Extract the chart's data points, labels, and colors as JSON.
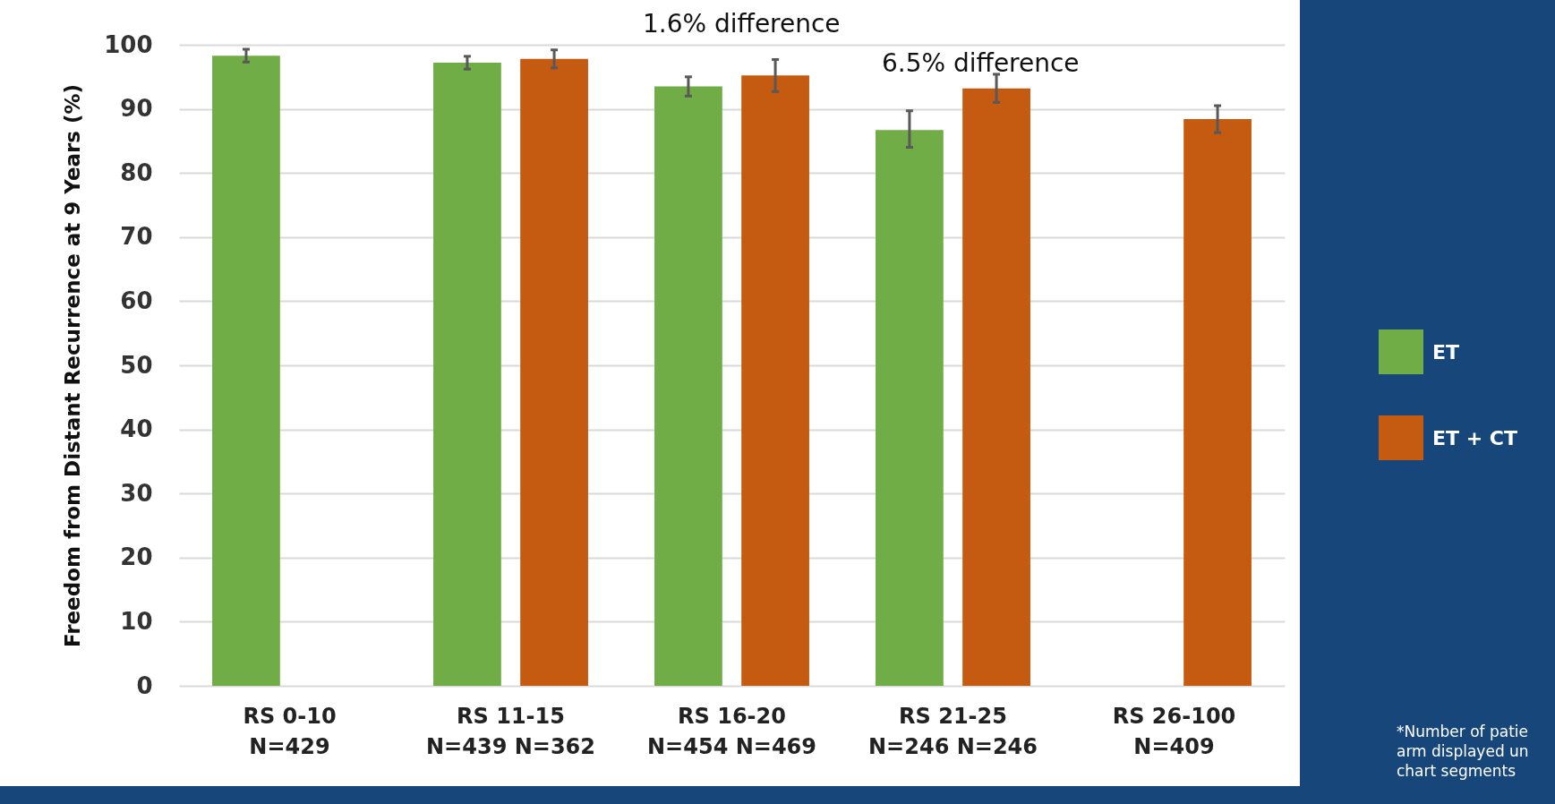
{
  "chart_data": {
    "type": "bar",
    "ylabel": "Freedom from Distant Recurrence at 9 Years (%)",
    "categories": [
      "RS 0-10\nN=429",
      "RS 11-15\nN=439  N=362",
      "RS 16-20\nN=454  N=469",
      "RS 21-25\nN=246  N=246",
      "RS 26-100\nN=409"
    ],
    "series": [
      {
        "name": "ET",
        "color": "#70ad47",
        "values": [
          98.3,
          97.2,
          93.5,
          86.7,
          null
        ],
        "errors": [
          1,
          1,
          1.5,
          [
            84,
            89.7
          ],
          null
        ]
      },
      {
        "name": "ET + CT",
        "color": "#c55a11",
        "values": [
          null,
          97.8,
          95.2,
          93.2,
          88.4
        ],
        "errors": [
          null,
          1.4,
          2.5,
          2.2,
          2.1
        ]
      }
    ],
    "ylim": [
      0,
      100
    ],
    "yticks": [
      0,
      10,
      20,
      30,
      40,
      50,
      60,
      70,
      80,
      90,
      100
    ],
    "grid": "y",
    "legend": "right",
    "annotations": [
      "1.6% difference",
      "6.5% difference",
      "*Number of patie\narm displayed un\nchart segments"
    ]
  }
}
